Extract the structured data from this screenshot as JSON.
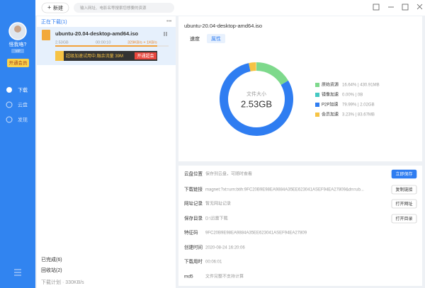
{
  "sidebar": {
    "username": "怪我咯?",
    "vip_badge": "VIP",
    "open_vip": "开通会员",
    "nav": [
      "下载",
      "云盘",
      "发现"
    ]
  },
  "toolbar": {
    "new_button": "新建",
    "search_placeholder": "输入网址、电影名等搜索您想要的资源"
  },
  "download_list": {
    "section": "正在下载(1)",
    "more": "•••",
    "item": {
      "name": "ubuntu-20.04-desktop-amd64.iso",
      "size": "2.53GB",
      "time": "00:00:10",
      "speed": "329KB/s + 1KB/s"
    },
    "ad": {
      "text": "超级加速试用中,融余流量 39M",
      "button": "开通超会"
    },
    "completed": "已完成(6)",
    "recycle": "回收站(2)",
    "plan": "下载计划 · 330KB/s"
  },
  "detail": {
    "title": "ubuntu-20.04-desktop-amd64.iso",
    "tabs": [
      "速度",
      "属性"
    ],
    "donut": {
      "center_label": "文件大小",
      "center_value": "2.53GB",
      "segments": [
        {
          "name": "原始资源",
          "color": "#7ed98c",
          "value": 16.64,
          "value_label": "16.64% | 430.91MB"
        },
        {
          "name": "镜像加速",
          "color": "#44c8c2",
          "value": 0.0,
          "value_label": "0.00% | 0B"
        },
        {
          "name": "P2P加速",
          "color": "#2f7df1",
          "value": 79.99,
          "value_label": "79.99% | 2.02GB"
        },
        {
          "name": "会员加速",
          "color": "#f6c344",
          "value": 3.23,
          "value_label": "3.23% | 83.67MB"
        }
      ]
    },
    "properties": [
      {
        "label": "云盘位置",
        "value": "保存到云盘，可随时查看",
        "button": "立即保存"
      },
      {
        "label": "下载链接",
        "value": "magnet:?xt=urn:btih:9FC20B9E98EA9884A35EE623041ASEF94EA27809&dn=ub...",
        "button": "复制链接"
      },
      {
        "label": "网址记录",
        "value": "暂无网址记录",
        "button": "打开网址"
      },
      {
        "label": "保存目录",
        "value": "D:\\迅雷下载",
        "button": "打开目录"
      },
      {
        "label": "特征码",
        "value": "9FC20B9E98EA9884A35EE623041ASEF94EA27809"
      },
      {
        "label": "创建时间",
        "value": "2020-08-24 16:20:06"
      },
      {
        "label": "下载用时",
        "value": "00:06:01"
      },
      {
        "label": "md5",
        "value": "文件完整不支持计算"
      }
    ]
  }
}
